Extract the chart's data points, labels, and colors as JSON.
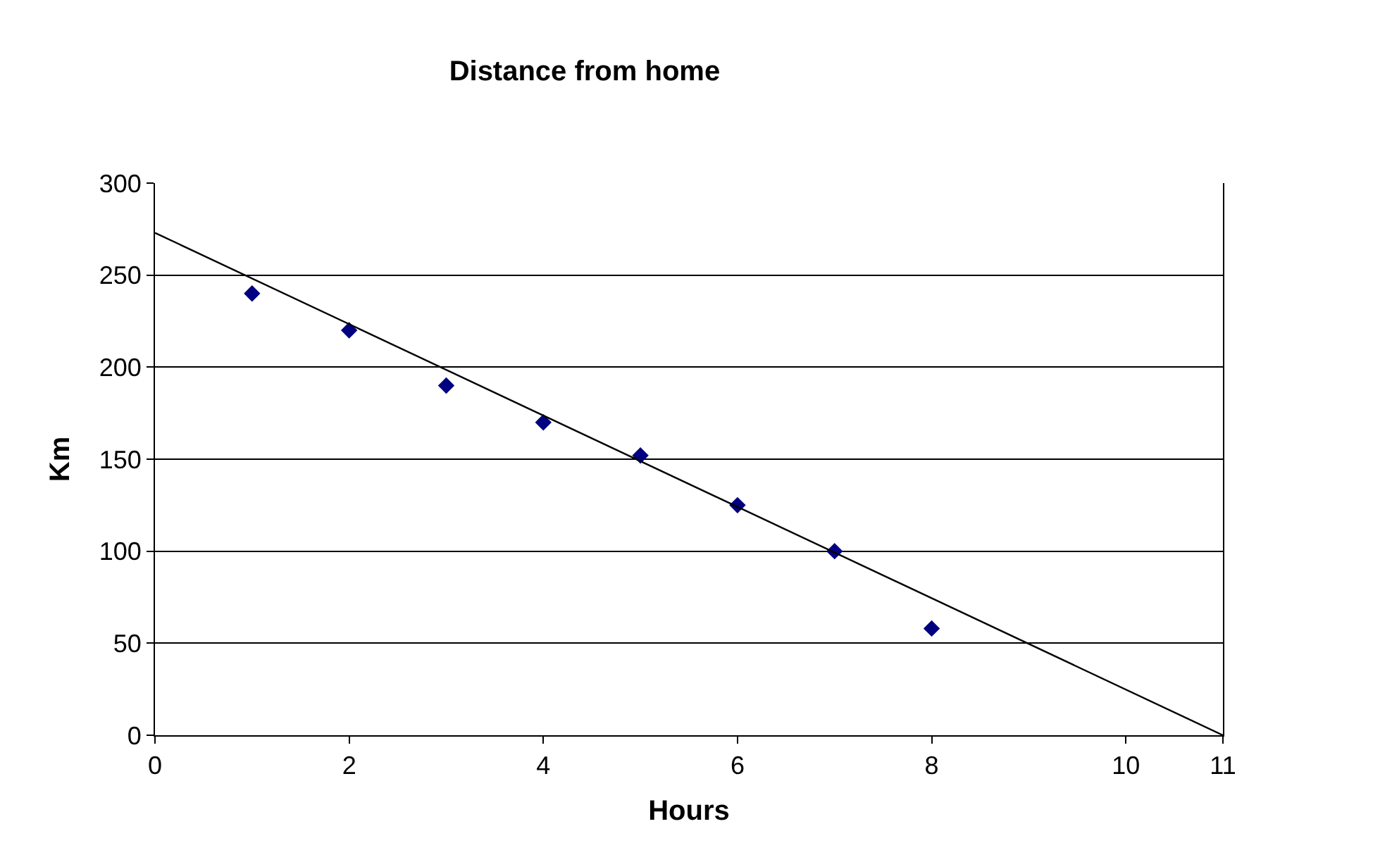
{
  "chart_data": {
    "type": "scatter",
    "title": "Distance from home",
    "xlabel": "Hours",
    "ylabel": "Km",
    "x": [
      1,
      2,
      3,
      4,
      5,
      6,
      7,
      8
    ],
    "series": [
      {
        "color": "#000080",
        "values": [
          240,
          220,
          190,
          170,
          152,
          125,
          100,
          58
        ],
        "marker": "diamond"
      },
      {
        "type": "line",
        "color": "#000000",
        "x": [
          0,
          11
        ],
        "values": [
          273,
          0
        ],
        "marker": "none",
        "line_style": "solid"
      }
    ],
    "xlim": [
      0,
      11
    ],
    "xticks": [
      0,
      2,
      4,
      6,
      8,
      10,
      {
        "value": 11,
        "label": "11"
      }
    ],
    "ylim": [
      0,
      300
    ],
    "yticks": [
      0,
      50,
      100,
      150,
      200,
      250,
      300
    ],
    "grid": "y"
  }
}
